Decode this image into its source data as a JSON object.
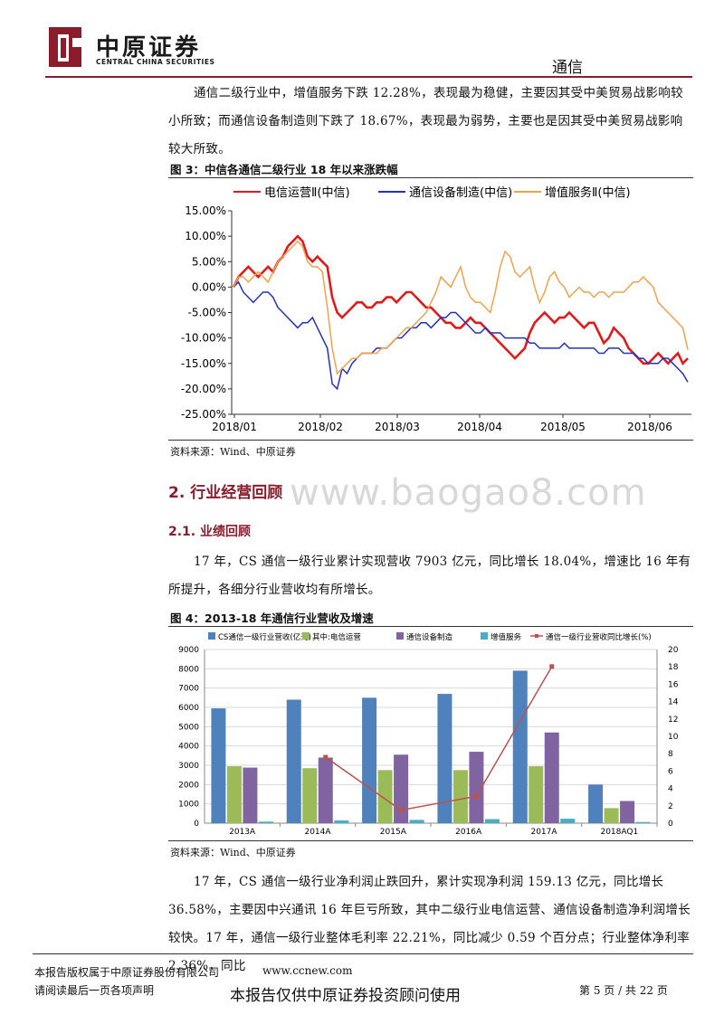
{
  "header": {
    "logo_cn": "中原证券",
    "logo_en": "CENTRAL CHINA SECURITIES",
    "section": "通信",
    "colors": {
      "brand": "#8a1c2b",
      "rule": "#8a1c2b"
    }
  },
  "intro_paragraph": "通信二级行业中，增值服务下跌 12.28%，表现最为稳健，主要因其受中美贸易战影响较小所致；而通信设备制造则下跌了 18.67%，表现最为弱势，主要也是因其受中美贸易战影响较大所致。",
  "figure3": {
    "title": "图 3：中信各通信二级行业 18 年以来涨跌幅",
    "source": "资料来源：Wind、中原证券"
  },
  "section2": {
    "heading": "2. 行业经营回顾",
    "sub_heading": "2.1. 业绩回顾"
  },
  "watermark": "www.baogao8.com",
  "paragraph2": "17 年，CS 通信一级行业累计实现营收 7903 亿元，同比增长 18.04%，增速比 16 年有所提升，各细分行业营收均有所增长。",
  "figure4": {
    "title": "图 4：2013-18 年通信行业营收及增速",
    "source": "资料来源：Wind、中原证券"
  },
  "paragraph3": "17 年，CS 通信一级行业净利润止跌回升，累计实现净利润 159.13 亿元，同比增长 36.58%，主要因中兴通讯 16 年巨亏所致，其中二级行业电信运营、通信设备制造净利润增长较快。17 年，通信一级行业整体毛利率 22.21%，同比减少 0.59 个百分点；行业整体净利率 2.36%，同比",
  "footer": {
    "copyright": "本报告版权属于中原证券股份有限公司",
    "website": "www.ccnew.com",
    "disclaimer": "请阅读最后一页各项声明",
    "page": "第 5 页 / 共 22 页",
    "notice": "本报告仅供中原证券投资顾问使用"
  },
  "chart_data": [
    {
      "type": "line",
      "title": "",
      "x_ticks": [
        "2018/01",
        "2018/02",
        "2018/03",
        "2018/04",
        "2018/05",
        "2018/06"
      ],
      "ylim": [
        -25,
        15
      ],
      "y_ticks": [
        "15.00%",
        "10.00%",
        "5.00%",
        "0.00%",
        "-5.00%",
        "-10.00%",
        "-15.00%",
        "-20.00%",
        "-25.00%"
      ],
      "grid": false,
      "legend": "top",
      "series": [
        {
          "name": "电信运营Ⅱ(中信)",
          "color": "#e31a1c",
          "values": [
            0,
            2,
            3,
            4,
            3,
            2,
            3,
            4,
            3,
            5,
            6,
            8,
            9,
            10,
            9,
            6,
            5,
            6,
            5,
            4,
            -2,
            -5,
            -6,
            -5,
            -4,
            -3,
            -3,
            -4,
            -4,
            -3,
            -3,
            -2,
            -2,
            -3,
            -2,
            -1,
            -1,
            -2,
            -3,
            -4,
            -4,
            -5,
            -6,
            -7,
            -7,
            -8,
            -8,
            -7,
            -6,
            -7,
            -7,
            -8,
            -9,
            -10,
            -11,
            -12,
            -13,
            -14,
            -13,
            -12,
            -9,
            -7,
            -6,
            -5,
            -6,
            -7,
            -6,
            -6,
            -5,
            -6,
            -7,
            -8,
            -7,
            -7,
            -9,
            -11,
            -10,
            -8,
            -9,
            -10,
            -12,
            -13,
            -14,
            -15,
            -15,
            -14,
            -13,
            -14,
            -15,
            -14,
            -13,
            -15,
            -14
          ]
        },
        {
          "name": "通信设备制造(中信)",
          "color": "#2233bb",
          "values": [
            0,
            1,
            -1,
            -2,
            -3,
            -2,
            -1,
            -1,
            -2,
            -4,
            -5,
            -6,
            -7,
            -8,
            -7,
            -7,
            -6,
            -8,
            -10,
            -12,
            -19,
            -20,
            -16,
            -17,
            -15,
            -14,
            -13,
            -13,
            -13,
            -12,
            -12,
            -12,
            -11,
            -10,
            -10,
            -9,
            -8,
            -8,
            -7,
            -7,
            -8,
            -7,
            -6,
            -6,
            -5,
            -5,
            -6,
            -7,
            -8,
            -9,
            -9,
            -8,
            -9,
            -9,
            -9,
            -10,
            -10,
            -10,
            -10,
            -10,
            -11,
            -11,
            -12,
            -12,
            -12,
            -12,
            -12,
            -11,
            -12,
            -12,
            -12,
            -12,
            -12,
            -12,
            -13,
            -13,
            -12,
            -12,
            -12,
            -13,
            -13,
            -13,
            -14,
            -14,
            -15,
            -15,
            -15,
            -14,
            -14,
            -15,
            -16,
            -17,
            -18.67
          ]
        },
        {
          "name": "增值服务Ⅱ(中信)",
          "color": "#f4a24a",
          "values": [
            0,
            2,
            2,
            1,
            2,
            3,
            2,
            1,
            3,
            5,
            6,
            7,
            8,
            9,
            8,
            5,
            4,
            4,
            3,
            -4,
            -12,
            -17,
            -16,
            -15,
            -14,
            -14,
            -13,
            -13,
            -13,
            -13,
            -12,
            -12,
            -11,
            -10,
            -9,
            -8,
            -8,
            -7,
            -6,
            -5,
            -3,
            -1,
            2,
            1,
            0,
            2,
            4,
            0,
            -2,
            -3,
            -3,
            -4,
            -5,
            -1,
            4,
            7,
            6,
            3,
            2,
            3,
            4,
            0,
            -3,
            -1,
            2,
            3,
            1,
            0,
            -2,
            -1,
            0,
            -1,
            -1,
            -2,
            -1,
            -1,
            -2,
            -1,
            -1,
            -1,
            0,
            1,
            1,
            2,
            1,
            0,
            -3,
            -4,
            -5,
            -6,
            -7,
            -8,
            -12.28
          ]
        }
      ]
    },
    {
      "type": "bar",
      "title": "",
      "categories": [
        "2013A",
        "2014A",
        "2015A",
        "2016A",
        "2017A",
        "2018AQ1"
      ],
      "ylim": [
        0,
        9000
      ],
      "y2lim": [
        0,
        20
      ],
      "y_ticks": [
        "9000",
        "8000",
        "7000",
        "6000",
        "5000",
        "4000",
        "3000",
        "2000",
        "1000",
        "0"
      ],
      "y2_ticks": [
        "20",
        "18",
        "16",
        "14",
        "12",
        "10",
        "8",
        "6",
        "4",
        "2",
        "0"
      ],
      "legend": "top",
      "series": [
        {
          "name": "CS通信一级行业营收(亿元)",
          "color": "#4f81bd",
          "values": [
            5950,
            6400,
            6500,
            6700,
            7903,
            2000
          ]
        },
        {
          "name": "其中:电信运营",
          "color": "#9bbb59",
          "values": [
            2950,
            2850,
            2750,
            2750,
            2950,
            780
          ]
        },
        {
          "name": "通信设备制造",
          "color": "#8064a2",
          "values": [
            2880,
            3400,
            3550,
            3700,
            4700,
            1150
          ]
        },
        {
          "name": "增值服务",
          "color": "#4bacc6",
          "values": [
            80,
            140,
            170,
            210,
            230,
            60
          ]
        },
        {
          "name": "通信一级行业营收同比增长(%)",
          "color": "#c0504d",
          "axis": "right",
          "values": [
            null,
            7.6,
            1.5,
            3.1,
            18.04,
            null
          ]
        }
      ]
    }
  ]
}
